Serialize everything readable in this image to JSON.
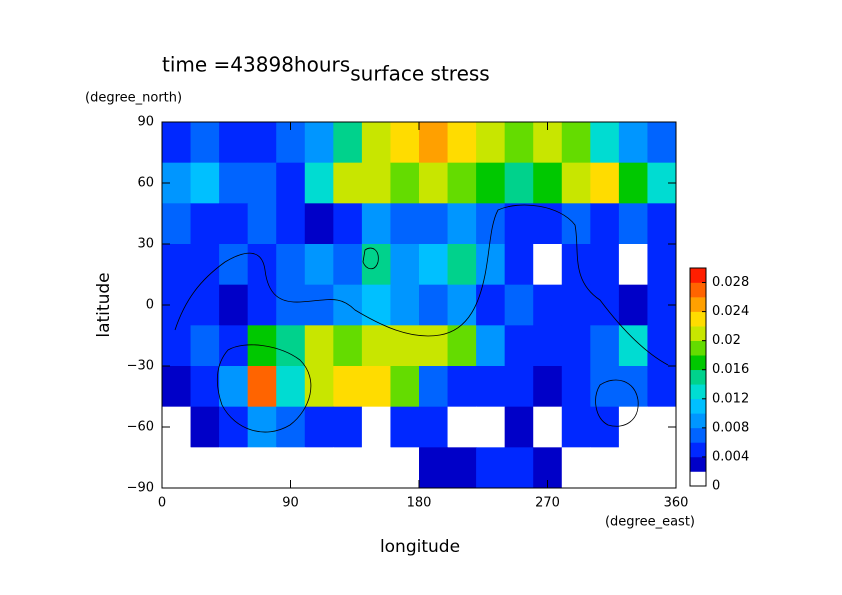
{
  "chart_data": {
    "type": "contour",
    "title": "surface stress",
    "time_label": "time =43898hours",
    "x_label": "longitude",
    "x_unit": "(degree_east)",
    "y_label": "latitude",
    "y_unit": "(degree_north)",
    "xlim": [
      0,
      360
    ],
    "ylim": [
      -90,
      90
    ],
    "xticks": [
      0,
      90,
      180,
      270,
      360
    ],
    "yticks": [
      {
        "value": -90,
        "label": "−90"
      },
      {
        "value": -60,
        "label": "−60"
      },
      {
        "value": -30,
        "label": "−30"
      },
      0,
      30,
      60,
      90
    ],
    "lon": [
      10,
      30,
      50,
      70,
      90,
      110,
      130,
      150,
      170,
      190,
      210,
      230,
      250,
      270,
      290,
      310,
      330,
      350
    ],
    "lat": [
      80,
      60,
      40,
      20,
      0,
      -20,
      -40,
      -60,
      -80
    ],
    "z": [
      [
        0.004,
        0.006,
        0.004,
        0.004,
        0.006,
        0.008,
        0.014,
        0.02,
        0.022,
        0.024,
        0.022,
        0.02,
        0.018,
        0.02,
        0.018,
        0.012,
        0.008,
        0.006
      ],
      [
        0.008,
        0.01,
        0.006,
        0.006,
        0.004,
        0.012,
        0.02,
        0.02,
        0.018,
        0.02,
        0.018,
        0.016,
        0.014,
        0.016,
        0.02,
        0.022,
        0.016,
        0.012
      ],
      [
        0.006,
        0.004,
        0.004,
        0.006,
        0.004,
        0.002,
        0.004,
        0.008,
        0.006,
        0.006,
        0.008,
        0.006,
        0.004,
        0.004,
        0.006,
        0.004,
        0.006,
        0.004
      ],
      [
        0.004,
        0.004,
        0.006,
        0.004,
        0.006,
        0.008,
        0.006,
        0.014,
        0.008,
        0.01,
        0.014,
        0.008,
        0.004,
        0,
        0.004,
        0.004,
        0,
        0.004
      ],
      [
        0.004,
        0.004,
        0.002,
        0.004,
        0.006,
        0.006,
        0.008,
        0.01,
        0.008,
        0.006,
        0.008,
        0.004,
        0.006,
        0.004,
        0.004,
        0.004,
        0.002,
        0.004
      ],
      [
        0.004,
        0.006,
        0.004,
        0.016,
        0.014,
        0.02,
        0.018,
        0.02,
        0.02,
        0.02,
        0.018,
        0.008,
        0.004,
        0.004,
        0.004,
        0.006,
        0.012,
        0.004
      ],
      [
        0.002,
        0.004,
        0.008,
        0.026,
        0.012,
        0.02,
        0.022,
        0.022,
        0.018,
        0.006,
        0.004,
        0.004,
        0.004,
        0.002,
        0.004,
        0.006,
        0.006,
        0.004
      ],
      [
        0,
        0.002,
        0.004,
        0.008,
        0.006,
        0.004,
        0.004,
        0,
        0.004,
        0.004,
        0,
        0,
        0.002,
        0,
        0.004,
        0.004,
        0,
        0
      ],
      [
        0,
        0,
        0,
        0,
        0,
        0,
        0,
        0,
        0,
        0.002,
        0.002,
        0.004,
        0.004,
        0.002,
        0,
        0,
        0,
        0
      ]
    ],
    "colorbar": {
      "levels": [
        0,
        0.002,
        0.004,
        0.006,
        0.008,
        0.01,
        0.012,
        0.014,
        0.016,
        0.018,
        0.02,
        0.022,
        0.024,
        0.026,
        0.028,
        0.03
      ],
      "colors": [
        "#ffffff",
        "#0000c8",
        "#0028ff",
        "#0064ff",
        "#0096ff",
        "#00c0ff",
        "#00dcd2",
        "#00d28c",
        "#00c800",
        "#64dc00",
        "#c8e600",
        "#ffdc00",
        "#ffa000",
        "#ff6400",
        "#ff1e00"
      ],
      "ticks": [
        0,
        0.004,
        0.008,
        0.012,
        0.016,
        0.02,
        0.024,
        0.028
      ]
    }
  }
}
